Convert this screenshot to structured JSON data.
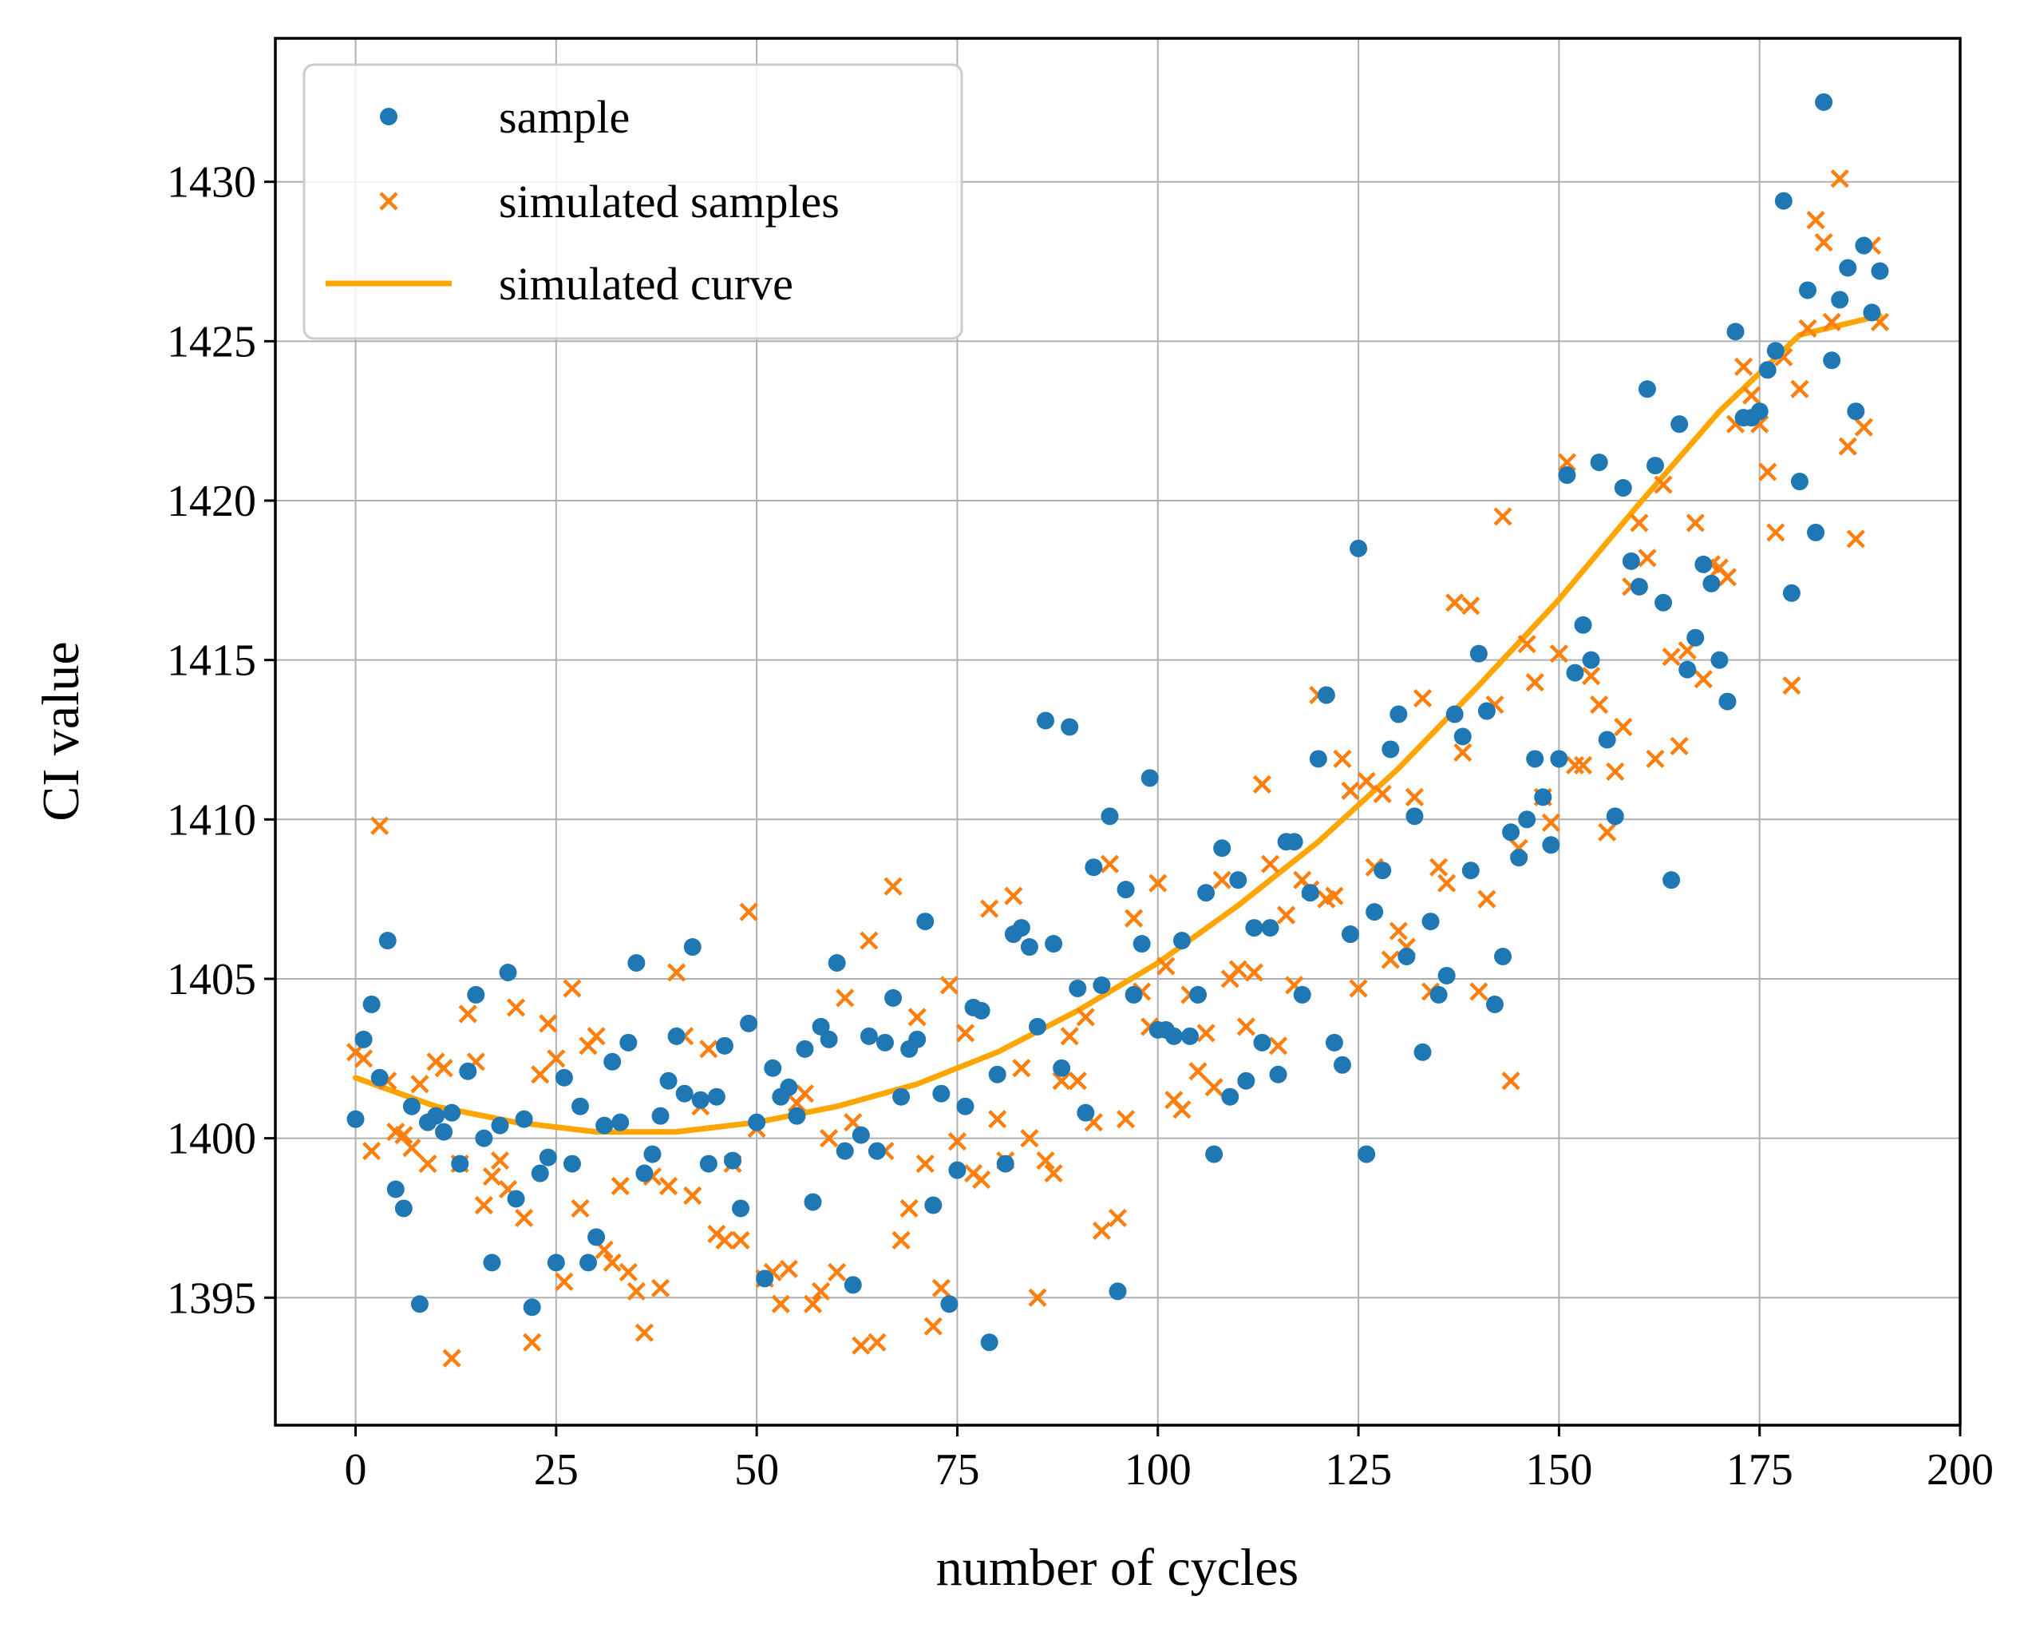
{
  "chart_data": {
    "type": "scatter",
    "xlabel": "number of cycles",
    "ylabel": "CI value",
    "xlim": [
      -10,
      200
    ],
    "ylim": [
      1391,
      1434.5
    ],
    "xticks": [
      0,
      25,
      50,
      75,
      100,
      125,
      150,
      175,
      200
    ],
    "yticks": [
      1395,
      1400,
      1405,
      1410,
      1415,
      1420,
      1425,
      1430
    ],
    "grid": true,
    "legend_position": "top-left",
    "colors": {
      "sample": "#1f77b4",
      "simulated_samples": "#ff7f0e",
      "simulated_curve": "#ffa500"
    },
    "series": [
      {
        "name": "sample",
        "marker": "circle",
        "x": [
          0,
          1,
          2,
          3,
          4,
          5,
          6,
          7,
          8,
          9,
          10,
          11,
          12,
          13,
          14,
          15,
          16,
          17,
          18,
          19,
          20,
          21,
          22,
          23,
          24,
          25,
          26,
          27,
          28,
          29,
          30,
          31,
          32,
          33,
          34,
          35,
          36,
          37,
          38,
          39,
          40,
          41,
          42,
          43,
          44,
          45,
          46,
          47,
          48,
          49,
          50,
          51,
          52,
          53,
          54,
          55,
          56,
          57,
          58,
          59,
          60,
          61,
          62,
          63,
          64,
          65,
          66,
          67,
          68,
          69,
          70,
          71,
          72,
          73,
          74,
          75,
          76,
          77,
          78,
          79,
          80,
          81,
          82,
          83,
          84,
          85,
          86,
          87,
          88,
          89,
          90,
          91,
          92,
          93,
          94,
          95,
          96,
          97,
          98,
          99,
          100,
          101,
          102,
          103,
          104,
          105,
          106,
          107,
          108,
          109,
          110,
          111,
          112,
          113,
          114,
          115,
          116,
          117,
          118,
          119,
          120,
          121,
          122,
          123,
          124,
          125,
          126,
          127,
          128,
          129,
          130,
          131,
          132,
          133,
          134,
          135,
          136,
          137,
          138,
          139,
          140,
          141,
          142,
          143,
          144,
          145,
          146,
          147,
          148,
          149,
          150,
          151,
          152,
          153,
          154,
          155,
          156,
          157,
          158,
          159,
          160,
          161,
          162,
          163,
          164,
          165,
          166,
          167,
          168,
          169,
          170,
          171,
          172,
          173,
          174,
          175,
          176,
          177,
          178,
          179,
          180,
          181,
          182,
          183,
          184,
          185,
          186,
          187,
          188,
          189,
          190
        ],
        "y": [
          1400.6,
          1403.1,
          1404.2,
          1401.9,
          1406.2,
          1398.4,
          1397.8,
          1401.0,
          1394.8,
          1400.5,
          1400.7,
          1400.2,
          1400.8,
          1399.2,
          1402.1,
          1404.5,
          1400.0,
          1396.1,
          1400.4,
          1405.2,
          1398.1,
          1400.6,
          1394.7,
          1398.9,
          1399.4,
          1396.1,
          1401.9,
          1399.2,
          1401.0,
          1396.1,
          1396.9,
          1400.4,
          1402.4,
          1400.5,
          1403.0,
          1405.5,
          1398.9,
          1399.5,
          1400.7,
          1401.8,
          1403.2,
          1401.4,
          1406.0,
          1401.2,
          1399.2,
          1401.3,
          1402.9,
          1399.3,
          1397.8,
          1403.6,
          1400.5,
          1395.6,
          1402.2,
          1401.3,
          1401.6,
          1400.7,
          1402.8,
          1398.0,
          1403.5,
          1403.1,
          1405.5,
          1399.6,
          1395.4,
          1400.1,
          1403.2,
          1399.6,
          1403.0,
          1404.4,
          1401.3,
          1402.8,
          1403.1,
          1406.8,
          1397.9,
          1401.4,
          1394.8,
          1399.0,
          1401.0,
          1404.1,
          1404.0,
          1393.6,
          1402.0,
          1399.2,
          1406.4,
          1406.6,
          1406.0,
          1403.5,
          1413.1,
          1406.1,
          1402.2,
          1412.9,
          1404.7,
          1400.8,
          1408.5,
          1404.8,
          1410.1,
          1395.2,
          1407.8,
          1404.5,
          1406.1,
          1411.3,
          1403.4,
          1403.4,
          1403.2,
          1406.2,
          1403.2,
          1404.5,
          1407.7,
          1399.5,
          1409.1,
          1401.3,
          1408.1,
          1401.8,
          1406.6,
          1403.0,
          1406.6,
          1402.0,
          1409.3,
          1409.3,
          1404.5,
          1407.7,
          1411.9,
          1413.9,
          1403.0,
          1402.3,
          1406.4,
          1418.5,
          1399.5,
          1407.1,
          1408.4,
          1412.2,
          1413.3,
          1405.7,
          1410.1,
          1402.7,
          1406.8,
          1404.5,
          1405.1,
          1413.3,
          1412.6,
          1408.4,
          1415.2,
          1413.4,
          1404.2,
          1405.7,
          1409.6,
          1408.8,
          1410.0,
          1411.9,
          1410.7,
          1409.2,
          1411.9,
          1420.8,
          1414.6,
          1416.1,
          1415.0,
          1421.2,
          1412.5,
          1410.1,
          1420.4,
          1418.1,
          1417.3,
          1423.5,
          1421.1,
          1416.8,
          1408.1,
          1422.4,
          1414.7,
          1415.7,
          1418.0,
          1417.4,
          1415.0,
          1413.7,
          1425.3,
          1422.6,
          1422.6,
          1422.8,
          1424.1,
          1424.7,
          1429.4,
          1417.1,
          1420.6,
          1426.6,
          1419.0,
          1432.5,
          1424.4,
          1426.3,
          1427.3,
          1422.8,
          1428.0,
          1425.9,
          1427.2
        ]
      },
      {
        "name": "simulated samples",
        "marker": "x",
        "x": [
          0,
          1,
          2,
          3,
          4,
          5,
          6,
          7,
          8,
          9,
          10,
          11,
          12,
          13,
          14,
          15,
          16,
          17,
          18,
          19,
          20,
          21,
          22,
          23,
          24,
          25,
          26,
          27,
          28,
          29,
          30,
          31,
          32,
          33,
          34,
          35,
          36,
          37,
          38,
          39,
          40,
          41,
          42,
          43,
          44,
          45,
          46,
          47,
          48,
          49,
          50,
          51,
          52,
          53,
          54,
          55,
          56,
          57,
          58,
          59,
          60,
          61,
          62,
          63,
          64,
          65,
          66,
          67,
          68,
          69,
          70,
          71,
          72,
          73,
          74,
          75,
          76,
          77,
          78,
          79,
          80,
          81,
          82,
          83,
          84,
          85,
          86,
          87,
          88,
          89,
          90,
          91,
          92,
          93,
          94,
          95,
          96,
          97,
          98,
          99,
          100,
          101,
          102,
          103,
          104,
          105,
          106,
          107,
          108,
          109,
          110,
          111,
          112,
          113,
          114,
          115,
          116,
          117,
          118,
          119,
          120,
          121,
          122,
          123,
          124,
          125,
          126,
          127,
          128,
          129,
          130,
          131,
          132,
          133,
          134,
          135,
          136,
          137,
          138,
          139,
          140,
          141,
          142,
          143,
          144,
          145,
          146,
          147,
          148,
          149,
          150,
          151,
          152,
          153,
          154,
          155,
          156,
          157,
          158,
          159,
          160,
          161,
          162,
          163,
          164,
          165,
          166,
          167,
          168,
          169,
          170,
          171,
          172,
          173,
          174,
          175,
          176,
          177,
          178,
          179,
          180,
          181,
          182,
          183,
          184,
          185,
          186,
          187,
          188,
          189,
          190
        ],
        "y": [
          1402.7,
          1402.5,
          1399.6,
          1409.8,
          1401.8,
          1400.2,
          1400.1,
          1399.7,
          1401.7,
          1399.2,
          1402.4,
          1402.2,
          1393.1,
          1399.2,
          1403.9,
          1402.4,
          1397.9,
          1398.8,
          1399.3,
          1398.4,
          1404.1,
          1397.5,
          1393.6,
          1402.0,
          1403.6,
          1402.5,
          1395.5,
          1404.7,
          1397.8,
          1402.9,
          1403.2,
          1396.5,
          1396.1,
          1398.5,
          1395.8,
          1395.2,
          1393.9,
          1398.8,
          1395.3,
          1398.5,
          1405.2,
          1403.2,
          1398.2,
          1401.0,
          1402.8,
          1397.0,
          1396.8,
          1399.2,
          1396.8,
          1407.1,
          1400.3,
          1395.6,
          1395.8,
          1394.8,
          1395.9,
          1401.1,
          1401.4,
          1394.8,
          1395.2,
          1400.0,
          1395.8,
          1404.4,
          1400.5,
          1393.5,
          1406.2,
          1393.6,
          1399.6,
          1407.9,
          1396.8,
          1397.8,
          1403.8,
          1399.2,
          1394.1,
          1395.3,
          1404.8,
          1399.9,
          1403.3,
          1398.9,
          1398.7,
          1407.2,
          1400.6,
          1399.3,
          1407.6,
          1402.2,
          1400.0,
          1395.0,
          1399.3,
          1398.9,
          1401.8,
          1403.2,
          1401.8,
          1403.8,
          1400.5,
          1397.1,
          1408.6,
          1397.5,
          1400.6,
          1406.9,
          1404.6,
          1403.5,
          1408.0,
          1405.4,
          1401.2,
          1400.9,
          1404.5,
          1402.1,
          1403.3,
          1401.6,
          1408.1,
          1405.0,
          1405.3,
          1403.5,
          1405.2,
          1411.1,
          1408.6,
          1402.9,
          1407.0,
          1404.8,
          1408.1,
          1407.8,
          1413.9,
          1407.5,
          1407.6,
          1411.9,
          1410.9,
          1404.7,
          1411.2,
          1408.5,
          1410.8,
          1405.6,
          1406.5,
          1406.0,
          1410.7,
          1413.8,
          1404.6,
          1408.5,
          1408.0,
          1416.8,
          1412.1,
          1416.7,
          1404.6,
          1407.5,
          1413.6,
          1419.5,
          1401.8,
          1409.1,
          1415.5,
          1414.3,
          1410.7,
          1409.9,
          1415.2,
          1421.2,
          1411.7,
          1411.7,
          1414.5,
          1413.6,
          1409.6,
          1411.5,
          1412.9,
          1417.3,
          1419.3,
          1418.2,
          1411.9,
          1420.5,
          1415.1,
          1412.3,
          1415.3,
          1419.3,
          1414.4,
          1418.0,
          1417.9,
          1417.6,
          1422.4,
          1424.2,
          1423.3,
          1422.4,
          1420.9,
          1419.0,
          1424.5,
          1414.2,
          1423.5,
          1425.4,
          1428.8,
          1428.1,
          1425.6,
          1430.1,
          1421.7,
          1418.8,
          1422.3,
          1428.0,
          1425.6
        ]
      },
      {
        "name": "simulated curve",
        "marker": "line",
        "x": [
          0,
          10,
          20,
          30,
          40,
          50,
          60,
          70,
          80,
          90,
          100,
          110,
          120,
          130,
          140,
          150,
          160,
          170,
          180,
          190
        ],
        "y": [
          1401.9,
          1401.0,
          1400.5,
          1400.2,
          1400.2,
          1400.5,
          1401.0,
          1401.7,
          1402.7,
          1404.0,
          1405.5,
          1407.3,
          1409.3,
          1411.6,
          1414.2,
          1416.9,
          1419.9,
          1422.8,
          1425.2,
          1425.8
        ]
      }
    ]
  }
}
